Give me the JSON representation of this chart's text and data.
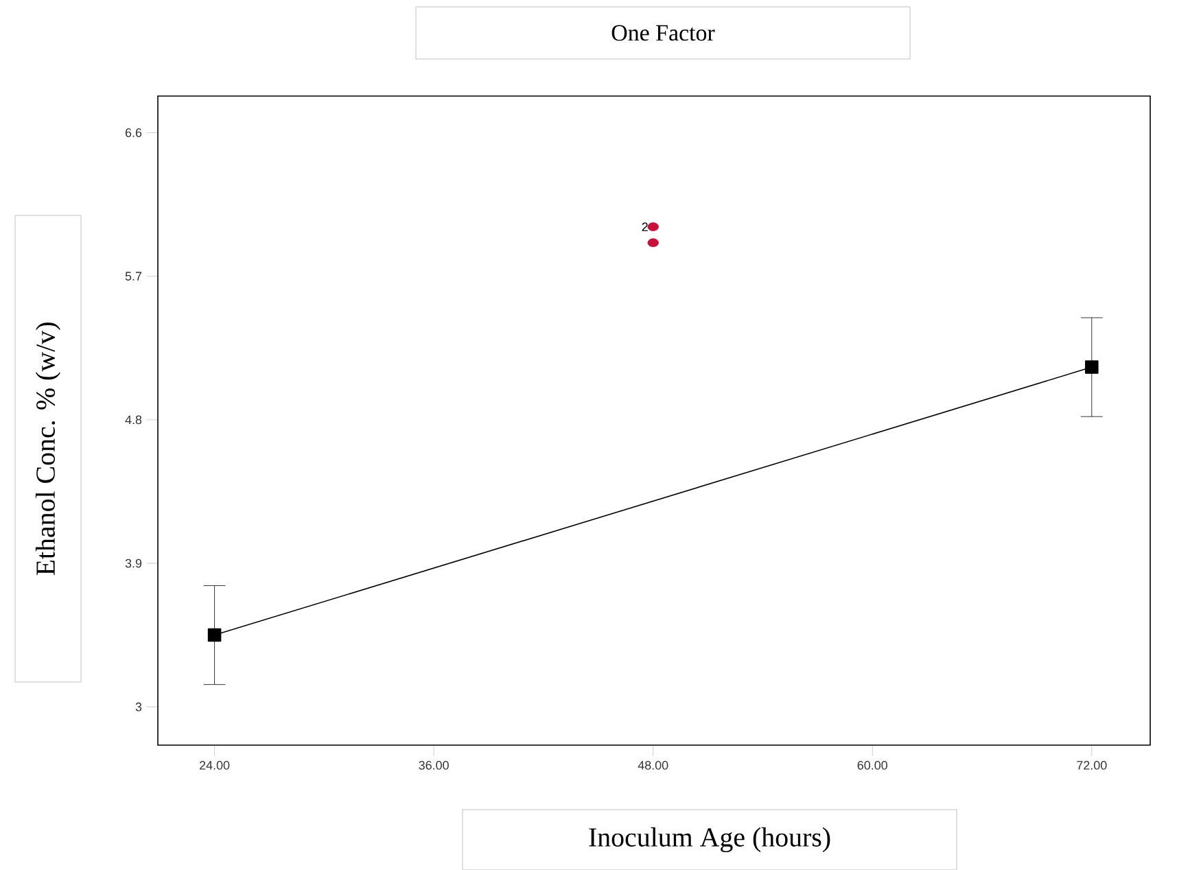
{
  "chart_data": {
    "type": "line",
    "title": "One Factor",
    "xlabel": "Inoculum Age (hours)",
    "ylabel": "Ethanol Conc. % (w/v)",
    "xlim": [
      20.9,
      75.2
    ],
    "ylim": [
      2.76,
      6.83
    ],
    "xticks": [
      {
        "value": 24,
        "label": "24.00"
      },
      {
        "value": 36,
        "label": "36.00"
      },
      {
        "value": 48,
        "label": "48.00"
      },
      {
        "value": 60,
        "label": "60.00"
      },
      {
        "value": 72,
        "label": "72.00"
      }
    ],
    "yticks": [
      3,
      3.9,
      4.8,
      5.7,
      6.6
    ],
    "series": [
      {
        "color": "#000000",
        "marker": "square",
        "x": [
          24,
          72
        ],
        "values": [
          3.45,
          5.13
        ],
        "errors": [
          0.31,
          0.31
        ]
      },
      {
        "type": "scatter",
        "color": "#c8103c",
        "marker": "circle",
        "x": [
          48,
          48
        ],
        "values": [
          6.01,
          5.91
        ]
      }
    ],
    "annotations": [
      {
        "text": "2",
        "x": 48,
        "y": 6.01
      }
    ]
  }
}
